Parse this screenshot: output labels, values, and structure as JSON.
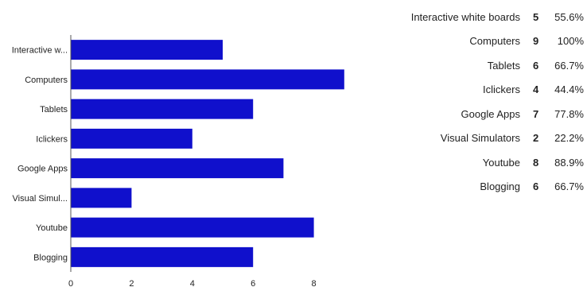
{
  "chart_data": {
    "type": "bar",
    "orientation": "horizontal",
    "categories": [
      "Interactive w...",
      "Computers",
      "Tablets",
      "Iclickers",
      "Google Apps",
      "Visual Simul...",
      "Youtube",
      "Blogging"
    ],
    "values": [
      5,
      9,
      6,
      4,
      7,
      2,
      8,
      6
    ],
    "xticks": [
      0,
      2,
      4,
      6,
      8
    ],
    "xlim": [
      0,
      9.3
    ],
    "bar_color": "#1010cc",
    "axis_color": "#555555",
    "grid": false,
    "legend": "none"
  },
  "summary": [
    {
      "label": "Interactive white boards",
      "count": "5",
      "percent": "55.6%"
    },
    {
      "label": "Computers",
      "count": "9",
      "percent": "100%"
    },
    {
      "label": "Tablets",
      "count": "6",
      "percent": "66.7%"
    },
    {
      "label": "Iclickers",
      "count": "4",
      "percent": "44.4%"
    },
    {
      "label": "Google Apps",
      "count": "7",
      "percent": "77.8%"
    },
    {
      "label": "Visual Simulators",
      "count": "2",
      "percent": "22.2%"
    },
    {
      "label": "Youtube",
      "count": "8",
      "percent": "88.9%"
    },
    {
      "label": "Blogging",
      "count": "6",
      "percent": "66.7%"
    }
  ]
}
